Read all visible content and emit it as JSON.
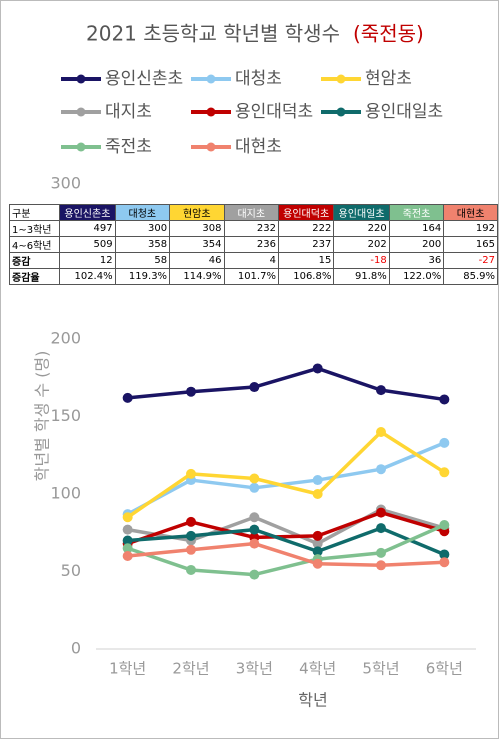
{
  "chart_data": {
    "type": "line",
    "title": "2021 초등학교 학년별 학생수",
    "title_suffix": "(죽전동)",
    "title_suffix_color": "#c00000",
    "x_label": "학년",
    "y_label": "학년별 학생 수 (명)",
    "categories": [
      "1학년",
      "2학년",
      "3학년",
      "4학년",
      "5학년",
      "6학년"
    ],
    "ylim": [
      0,
      300
    ],
    "yticks": [
      0,
      50,
      100,
      150,
      200,
      300
    ],
    "grid": false,
    "legend": "top",
    "series": [
      {
        "name": "용인신촌초",
        "color": "#1a1464",
        "values": [
          162,
          166,
          169,
          181,
          167,
          161
        ]
      },
      {
        "name": "대청초",
        "color": "#8ec9f0",
        "values": [
          87,
          109,
          104,
          109,
          116,
          133
        ]
      },
      {
        "name": "현암초",
        "color": "#ffd633",
        "values": [
          85,
          113,
          110,
          100,
          140,
          114
        ]
      },
      {
        "name": "대지초",
        "color": "#a0a0a0",
        "values": [
          77,
          70,
          85,
          68,
          90,
          78
        ]
      },
      {
        "name": "용인대덕초",
        "color": "#c00000",
        "values": [
          68,
          82,
          72,
          73,
          88,
          76
        ]
      },
      {
        "name": "용인대일초",
        "color": "#0f6b6b",
        "values": [
          70,
          73,
          77,
          63,
          78,
          61
        ]
      },
      {
        "name": "죽전초",
        "color": "#7fc08f",
        "values": [
          65,
          51,
          48,
          58,
          62,
          80
        ]
      },
      {
        "name": "대현초",
        "color": "#f0826e",
        "values": [
          60,
          64,
          68,
          55,
          54,
          56
        ]
      }
    ]
  },
  "table": {
    "corner": "구분",
    "rows": [
      {
        "label": "1~3학년",
        "cells": [
          497,
          300,
          308,
          232,
          222,
          220,
          164,
          192
        ]
      },
      {
        "label": "4~6학년",
        "cells": [
          509,
          358,
          354,
          236,
          237,
          202,
          200,
          165
        ]
      },
      {
        "label": "증감",
        "cells": [
          12,
          58,
          46,
          4,
          15,
          -18,
          36,
          -27
        ]
      },
      {
        "label": "증감율",
        "cells": [
          "102.4%",
          "119.3%",
          "114.9%",
          "101.7%",
          "106.8%",
          "91.8%",
          "122.0%",
          "85.9%"
        ]
      }
    ]
  }
}
